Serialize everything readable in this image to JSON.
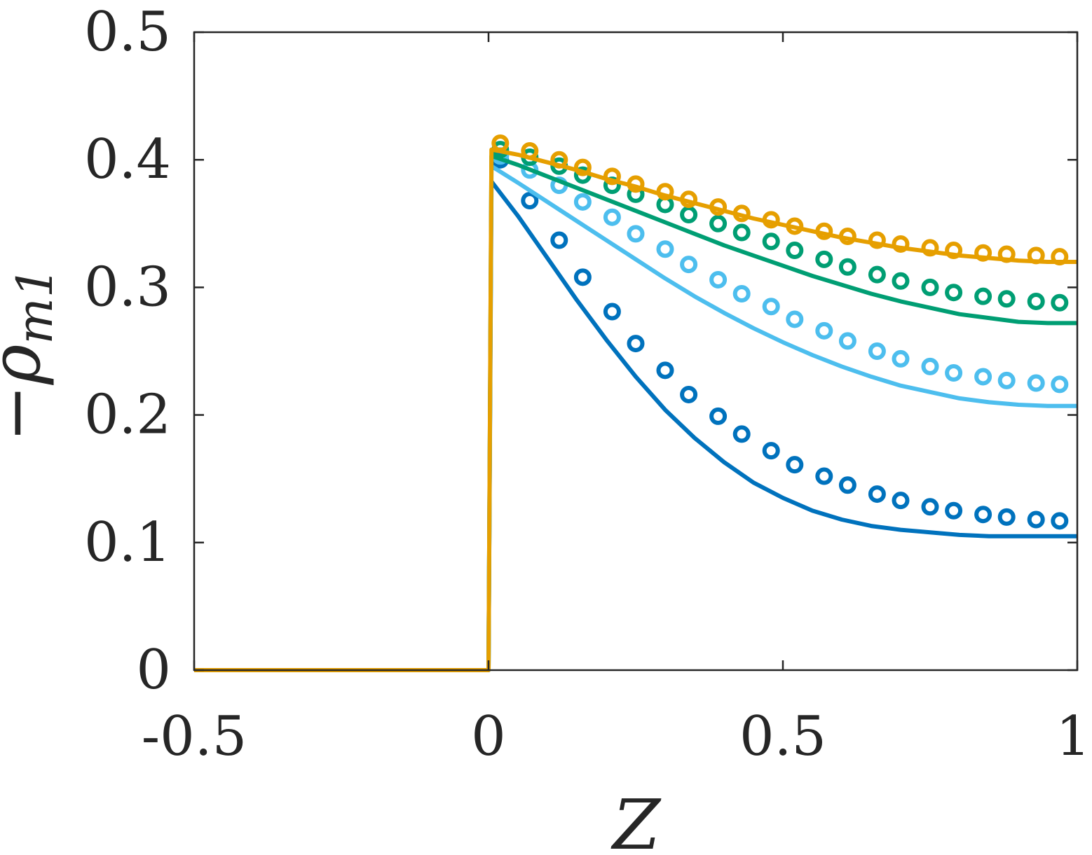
{
  "chart_data": {
    "type": "line",
    "title": "",
    "xlabel": "Z",
    "ylabel_main": "−ρ",
    "ylabel_sub": "m1",
    "xlim": [
      -0.5,
      1
    ],
    "ylim": [
      0,
      0.5
    ],
    "xticks": [
      -0.5,
      0,
      0.5,
      1
    ],
    "xtick_labels": [
      "-0.5",
      "0",
      "0.5",
      "1"
    ],
    "yticks": [
      0,
      0.1,
      0.2,
      0.3,
      0.4,
      0.5
    ],
    "ytick_labels": [
      "0",
      "0.1",
      "0.2",
      "0.3",
      "0.4",
      "0.5"
    ],
    "grid": false,
    "legend": "none",
    "series": [
      {
        "color": "#0072bd",
        "line_x": [
          -0.5,
          0,
          0.005,
          0.05,
          0.1,
          0.15,
          0.2,
          0.25,
          0.3,
          0.35,
          0.4,
          0.45,
          0.5,
          0.55,
          0.6,
          0.65,
          0.7,
          0.75,
          0.8,
          0.85,
          0.9,
          0.95,
          1.0
        ],
        "line_y": [
          0,
          0,
          0.383,
          0.356,
          0.323,
          0.29,
          0.259,
          0.23,
          0.204,
          0.182,
          0.163,
          0.147,
          0.135,
          0.125,
          0.118,
          0.113,
          0.11,
          0.108,
          0.106,
          0.105,
          0.105,
          0.105,
          0.105
        ],
        "markers_x": [
          0.02,
          0.07,
          0.12,
          0.16,
          0.21,
          0.25,
          0.3,
          0.34,
          0.39,
          0.43,
          0.48,
          0.52,
          0.57,
          0.61,
          0.66,
          0.7,
          0.75,
          0.79,
          0.84,
          0.88,
          0.93,
          0.97
        ],
        "markers_y": [
          0.4,
          0.368,
          0.337,
          0.308,
          0.281,
          0.256,
          0.235,
          0.216,
          0.199,
          0.185,
          0.172,
          0.161,
          0.152,
          0.145,
          0.138,
          0.133,
          0.128,
          0.125,
          0.122,
          0.12,
          0.118,
          0.117
        ]
      },
      {
        "color": "#4dbeee",
        "line_x": [
          -0.5,
          0,
          0.005,
          0.05,
          0.1,
          0.15,
          0.2,
          0.25,
          0.3,
          0.35,
          0.4,
          0.45,
          0.5,
          0.55,
          0.6,
          0.65,
          0.7,
          0.75,
          0.8,
          0.85,
          0.9,
          0.95,
          1.0
        ],
        "line_y": [
          0,
          0,
          0.395,
          0.382,
          0.367,
          0.352,
          0.337,
          0.322,
          0.307,
          0.293,
          0.28,
          0.268,
          0.257,
          0.247,
          0.238,
          0.23,
          0.223,
          0.218,
          0.213,
          0.21,
          0.208,
          0.207,
          0.207
        ],
        "markers_x": [
          0.02,
          0.07,
          0.12,
          0.16,
          0.21,
          0.25,
          0.3,
          0.34,
          0.39,
          0.43,
          0.48,
          0.52,
          0.57,
          0.61,
          0.66,
          0.7,
          0.75,
          0.79,
          0.84,
          0.88,
          0.93,
          0.97
        ],
        "markers_y": [
          0.403,
          0.392,
          0.38,
          0.367,
          0.355,
          0.342,
          0.33,
          0.318,
          0.306,
          0.295,
          0.285,
          0.275,
          0.266,
          0.258,
          0.25,
          0.244,
          0.238,
          0.233,
          0.23,
          0.227,
          0.225,
          0.224
        ]
      },
      {
        "color": "#009e73",
        "line_x": [
          -0.5,
          0,
          0.005,
          0.05,
          0.1,
          0.15,
          0.2,
          0.25,
          0.3,
          0.35,
          0.4,
          0.45,
          0.5,
          0.55,
          0.6,
          0.65,
          0.7,
          0.75,
          0.8,
          0.85,
          0.9,
          0.95,
          1.0
        ],
        "line_y": [
          0,
          0,
          0.403,
          0.396,
          0.387,
          0.378,
          0.369,
          0.36,
          0.351,
          0.342,
          0.333,
          0.325,
          0.317,
          0.309,
          0.302,
          0.295,
          0.289,
          0.284,
          0.279,
          0.276,
          0.273,
          0.272,
          0.272
        ],
        "markers_x": [
          0.02,
          0.07,
          0.12,
          0.16,
          0.21,
          0.25,
          0.3,
          0.34,
          0.39,
          0.43,
          0.48,
          0.52,
          0.57,
          0.61,
          0.66,
          0.7,
          0.75,
          0.79,
          0.84,
          0.88,
          0.93,
          0.97
        ],
        "markers_y": [
          0.408,
          0.402,
          0.395,
          0.388,
          0.38,
          0.373,
          0.365,
          0.357,
          0.35,
          0.343,
          0.336,
          0.329,
          0.322,
          0.316,
          0.31,
          0.305,
          0.3,
          0.296,
          0.293,
          0.291,
          0.289,
          0.288
        ]
      },
      {
        "color": "#e69f00",
        "line_x": [
          -0.5,
          0,
          0.005,
          0.05,
          0.1,
          0.15,
          0.2,
          0.25,
          0.3,
          0.35,
          0.4,
          0.45,
          0.5,
          0.55,
          0.6,
          0.65,
          0.7,
          0.75,
          0.8,
          0.85,
          0.9,
          0.95,
          1.0
        ],
        "line_y": [
          0,
          0,
          0.408,
          0.404,
          0.398,
          0.392,
          0.385,
          0.379,
          0.372,
          0.366,
          0.36,
          0.354,
          0.349,
          0.344,
          0.339,
          0.335,
          0.331,
          0.328,
          0.325,
          0.323,
          0.321,
          0.32,
          0.32
        ],
        "markers_x": [
          0.02,
          0.07,
          0.12,
          0.16,
          0.21,
          0.25,
          0.3,
          0.34,
          0.39,
          0.43,
          0.48,
          0.52,
          0.57,
          0.61,
          0.66,
          0.7,
          0.75,
          0.79,
          0.84,
          0.88,
          0.93,
          0.97
        ],
        "markers_y": [
          0.413,
          0.407,
          0.4,
          0.394,
          0.387,
          0.381,
          0.375,
          0.369,
          0.363,
          0.358,
          0.353,
          0.348,
          0.344,
          0.34,
          0.337,
          0.334,
          0.331,
          0.329,
          0.327,
          0.326,
          0.325,
          0.324
        ]
      }
    ]
  }
}
